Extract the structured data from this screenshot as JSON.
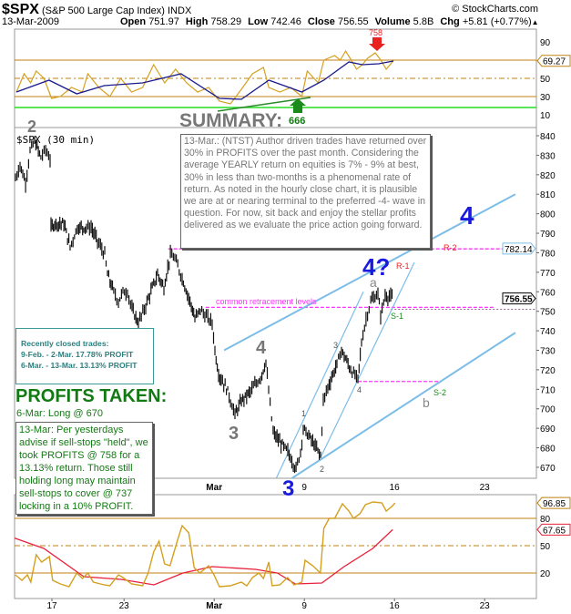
{
  "header": {
    "symbol": "$SPX",
    "name": "(S&P 500 Large Cap Index)",
    "exchange": "INDX",
    "copyright": "© StockCharts.com",
    "date": "13-Mar-2009",
    "quote": [
      {
        "label": "Open",
        "value": "751.97"
      },
      {
        "label": "High",
        "value": "758.29"
      },
      {
        "label": "Low",
        "value": "742.46"
      },
      {
        "label": "Close",
        "value": "756.55"
      },
      {
        "label": "Volume",
        "value": "5.8B"
      },
      {
        "label": "Chg",
        "value": "+5.81 (+0.77%)"
      }
    ],
    "chg_arrow": "▲"
  },
  "annotations": {
    "summary_title": "SUMMARY:",
    "summary_text": "13-Mar.:  (NTST) Author driven trades have returned over 30% in PROFITS over the past month.  Considering the average YEARLY return on equities is 7% - 9% at best, 30% in less than two-months is a phenomenal rate of return.  As noted in the hourly close chart, it is plausible we are at or nearing terminal to the preferred -4- wave in question.  For now, sit back and enjoy the stellar profits delivered as we evaluate the price action going forward.",
    "recent_title": "Recently closed trades:",
    "recent_trades": [
      "9-Feb. - 2-Mar. 17.78% PROFIT",
      "6-Mar. - 13-Mar. 13.13% PROFIT"
    ],
    "profits_title": "PROFITS TAKEN:",
    "profits_entry": "6-Mar:  Long @ 670",
    "profits_note": "13-Mar:  Per yesterdays advise if sell-stops \"held\", we took PROFITS @ 758 for a 13.13% return.  Those still holding long may maintain sell-stops to cover @ 737 locking in a 10% PROFIT.",
    "panel_label": "$SPX (30 min)",
    "retracement_label": "common retracement levels",
    "arrow_high": "758",
    "arrow_low": "666",
    "wave_2_top": "2",
    "wave_4_big": "4",
    "wave_4q": "4?",
    "wave_4_gray": "4",
    "wave_3_gray": "3",
    "wave_3_blue": "3",
    "wave_a": "a",
    "wave_b": "b",
    "sub_1": "1",
    "sub_2": "2",
    "sub_3": "3",
    "sub_4": "4",
    "r1": "R-1",
    "r2": "R-2",
    "s1": "S-1",
    "s2": "S-2"
  },
  "colors": {
    "accent_blue": "#1a1adf",
    "trend": "#7cbde8",
    "level": "#ff33ff",
    "rsi": "#d4a020",
    "ma": "#1a1a8c",
    "stoch_signal": "#e8203a",
    "green": "#137a13",
    "red": "#e82020"
  },
  "chart_data": {
    "type": "line",
    "title": "$SPX (S&P 500 Large Cap Index) 30 min",
    "x_unit": "trading sessions since 17-Feb-2009",
    "x_ticks": [
      {
        "s": 0,
        "label": "17"
      },
      {
        "s": 4,
        "label": "23"
      },
      {
        "s": 9,
        "label": "Mar"
      },
      {
        "s": 14,
        "label": "9"
      },
      {
        "s": 19,
        "label": "16"
      },
      {
        "s": 24,
        "label": "23"
      }
    ],
    "price": {
      "ylim": [
        665,
        845
      ],
      "yticks": [
        670,
        680,
        690,
        700,
        710,
        720,
        730,
        740,
        750,
        760,
        770,
        780,
        790,
        800,
        810,
        820,
        830,
        840
      ],
      "last": "756.55",
      "level_tag": "782.14",
      "path": [
        [
          -2.02,
          818
        ],
        [
          -1.77,
          825
        ],
        [
          -1.46,
          816
        ],
        [
          -1.21,
          832
        ],
        [
          -0.96,
          837
        ],
        [
          -0.61,
          829
        ],
        [
          -0.35,
          833
        ],
        [
          -0.1,
          828
        ],
        [
          -0.05,
          793
        ],
        [
          0.15,
          795
        ],
        [
          0.66,
          795
        ],
        [
          1.01,
          783
        ],
        [
          1.41,
          793
        ],
        [
          1.92,
          793
        ],
        [
          2.17,
          793
        ],
        [
          2.53,
          786
        ],
        [
          2.93,
          779
        ],
        [
          3.08,
          769
        ],
        [
          3.43,
          760
        ],
        [
          3.69,
          755
        ],
        [
          3.94,
          760
        ],
        [
          4.19,
          760
        ],
        [
          4.44,
          751
        ],
        [
          4.8,
          744
        ],
        [
          5.2,
          753
        ],
        [
          5.86,
          769
        ],
        [
          6.21,
          762
        ],
        [
          6.57,
          779
        ],
        [
          6.82,
          777
        ],
        [
          7.22,
          767
        ],
        [
          7.73,
          753
        ],
        [
          7.93,
          746
        ],
        [
          8.23,
          751
        ],
        [
          8.48,
          748
        ],
        [
          8.89,
          744
        ],
        [
          9.04,
          730
        ],
        [
          9.24,
          718
        ],
        [
          9.75,
          709
        ],
        [
          10.15,
          697
        ],
        [
          10.51,
          704
        ],
        [
          11.01,
          709
        ],
        [
          11.57,
          716
        ],
        [
          11.87,
          724
        ],
        [
          12.02,
          709
        ],
        [
          12.27,
          688
        ],
        [
          12.63,
          683
        ],
        [
          13.08,
          678
        ],
        [
          13.54,
          669
        ],
        [
          13.79,
          678
        ],
        [
          13.94,
          690
        ],
        [
          14.39,
          684
        ],
        [
          14.9,
          676
        ],
        [
          15.05,
          704
        ],
        [
          15.3,
          711
        ],
        [
          15.81,
          723
        ],
        [
          16.06,
          730
        ],
        [
          16.57,
          720
        ],
        [
          16.97,
          715
        ],
        [
          17.17,
          734
        ],
        [
          17.42,
          746
        ],
        [
          17.68,
          755
        ],
        [
          18.08,
          759
        ],
        [
          18.23,
          748
        ],
        [
          18.48,
          758
        ],
        [
          18.94,
          757
        ]
      ],
      "levels": [
        {
          "name": "R-2",
          "value": 782,
          "from": 6.45,
          "to": 25.7
        },
        {
          "name": "common retracement",
          "value": 752,
          "from": 8.53,
          "to": 24.6
        },
        {
          "name": "support",
          "value": 714,
          "from": 16.97,
          "to": 21.6
        }
      ],
      "close_line": 751,
      "trendlines": [
        {
          "name": "upper-channel",
          "from": [
            9.55,
            730
          ],
          "to": [
            25.7,
            810
          ]
        },
        {
          "name": "lower-channel",
          "from": [
            12.68,
            660.6
          ],
          "to": [
            25.7,
            739
          ]
        },
        {
          "name": "wedge-lower",
          "from": [
            12.12,
            658
          ],
          "to": [
            17.27,
            760
          ]
        },
        {
          "name": "wedge-upper",
          "from": [
            14.9,
            675
          ],
          "to": [
            20.1,
            775
          ]
        }
      ]
    },
    "rsi": {
      "ylim": [
        -4,
        104
      ],
      "yticks": [
        10,
        30,
        50,
        90
      ],
      "last": "69.27",
      "levels": {
        "overbought": 70,
        "mid": 50,
        "oversold": 30,
        "green": 18
      },
      "trendline": {
        "from": [
          9.19,
          14
        ],
        "to": [
          14.34,
          29
        ]
      },
      "line": [
        [
          -1.97,
          35
        ],
        [
          -1.54,
          55
        ],
        [
          -1.18,
          45
        ],
        [
          -0.87,
          58
        ],
        [
          -0.44,
          50
        ],
        [
          -0.02,
          28
        ],
        [
          0.47,
          30
        ],
        [
          1.08,
          40
        ],
        [
          1.69,
          35
        ],
        [
          1.99,
          55
        ],
        [
          2.6,
          40
        ],
        [
          3.21,
          30
        ],
        [
          3.82,
          50
        ],
        [
          4.42,
          35
        ],
        [
          5.03,
          40
        ],
        [
          5.64,
          65
        ],
        [
          6.25,
          45
        ],
        [
          6.86,
          60
        ],
        [
          7.47,
          45
        ],
        [
          8.08,
          35
        ],
        [
          8.69,
          40
        ],
        [
          9.29,
          25
        ],
        [
          9.9,
          22
        ],
        [
          10.51,
          38
        ],
        [
          11.12,
          55
        ],
        [
          11.73,
          62
        ],
        [
          12.03,
          40
        ],
        [
          12.64,
          35
        ],
        [
          13.25,
          40
        ],
        [
          13.86,
          30
        ],
        [
          14.16,
          58
        ],
        [
          14.77,
          45
        ],
        [
          15.08,
          70
        ],
        [
          15.68,
          75
        ],
        [
          15.99,
          70
        ],
        [
          16.29,
          80
        ],
        [
          16.6,
          70
        ],
        [
          16.9,
          60
        ],
        [
          17.21,
          65
        ],
        [
          17.51,
          72
        ],
        [
          17.93,
          78
        ],
        [
          18.24,
          70
        ],
        [
          18.54,
          60
        ],
        [
          18.94,
          69.27
        ]
      ],
      "ma": [
        [
          -1.97,
          35
        ],
        [
          -0.16,
          48
        ],
        [
          1.38,
          33
        ],
        [
          2.9,
          42
        ],
        [
          5.03,
          45
        ],
        [
          7.16,
          55
        ],
        [
          9.29,
          28
        ],
        [
          10.51,
          27
        ],
        [
          12.03,
          48
        ],
        [
          13.86,
          35
        ],
        [
          15.08,
          48
        ],
        [
          16.47,
          68
        ],
        [
          17.21,
          65
        ],
        [
          18.12,
          66
        ],
        [
          18.94,
          69
        ]
      ]
    },
    "stochastic": {
      "ylim": [
        -8,
        106
      ],
      "yticks": [
        20,
        50,
        80
      ],
      "last_k": "96.85",
      "last_d": "67.65",
      "levels": {
        "upper": 80,
        "mid": 50,
        "lower": 20
      },
      "k": [
        [
          -2.03,
          18
        ],
        [
          -1.66,
          12
        ],
        [
          -1.36,
          18
        ],
        [
          -1.17,
          10
        ],
        [
          -0.87,
          40
        ],
        [
          -0.57,
          32
        ],
        [
          -0.14,
          38
        ],
        [
          0.04,
          12
        ],
        [
          0.47,
          8
        ],
        [
          0.95,
          5
        ],
        [
          1.38,
          20
        ],
        [
          1.69,
          14
        ],
        [
          1.99,
          20
        ],
        [
          2.3,
          10
        ],
        [
          2.9,
          7
        ],
        [
          3.21,
          6
        ],
        [
          3.69,
          18
        ],
        [
          3.94,
          15
        ],
        [
          4.42,
          8
        ],
        [
          5.03,
          6
        ],
        [
          5.34,
          20
        ],
        [
          5.64,
          43
        ],
        [
          5.94,
          55
        ],
        [
          6.25,
          30
        ],
        [
          6.55,
          28
        ],
        [
          6.98,
          57
        ],
        [
          7.22,
          72
        ],
        [
          7.59,
          64
        ],
        [
          7.89,
          26
        ],
        [
          8.2,
          20
        ],
        [
          8.69,
          28
        ],
        [
          8.99,
          18
        ],
        [
          9.29,
          5
        ],
        [
          9.9,
          6
        ],
        [
          10.51,
          10
        ],
        [
          10.81,
          6
        ],
        [
          11.12,
          15
        ],
        [
          11.48,
          20
        ],
        [
          11.73,
          14
        ],
        [
          12.03,
          32
        ],
        [
          12.21,
          6
        ],
        [
          12.64,
          7
        ],
        [
          13.07,
          15
        ],
        [
          13.43,
          7
        ],
        [
          13.86,
          10
        ],
        [
          14.04,
          34
        ],
        [
          14.47,
          28
        ],
        [
          14.89,
          20
        ],
        [
          15.08,
          69
        ],
        [
          15.38,
          80
        ],
        [
          15.68,
          80
        ],
        [
          16.11,
          96
        ],
        [
          16.47,
          88
        ],
        [
          16.72,
          80
        ],
        [
          17.08,
          85
        ],
        [
          17.39,
          95
        ],
        [
          17.81,
          98
        ],
        [
          18.3,
          97
        ],
        [
          18.54,
          88
        ],
        [
          18.85,
          93
        ],
        [
          19.03,
          96.85
        ]
      ],
      "d": [
        [
          -2.17,
          59
        ],
        [
          -0.45,
          47
        ],
        [
          1.77,
          16
        ],
        [
          3.84,
          13
        ],
        [
          5.66,
          7
        ],
        [
          7.27,
          20
        ],
        [
          8.89,
          27
        ],
        [
          11.3,
          24
        ],
        [
          12.5,
          20
        ],
        [
          13.5,
          8
        ],
        [
          14.97,
          9
        ],
        [
          16.2,
          27
        ],
        [
          17.8,
          47
        ],
        [
          18.9,
          67.65
        ]
      ]
    }
  }
}
